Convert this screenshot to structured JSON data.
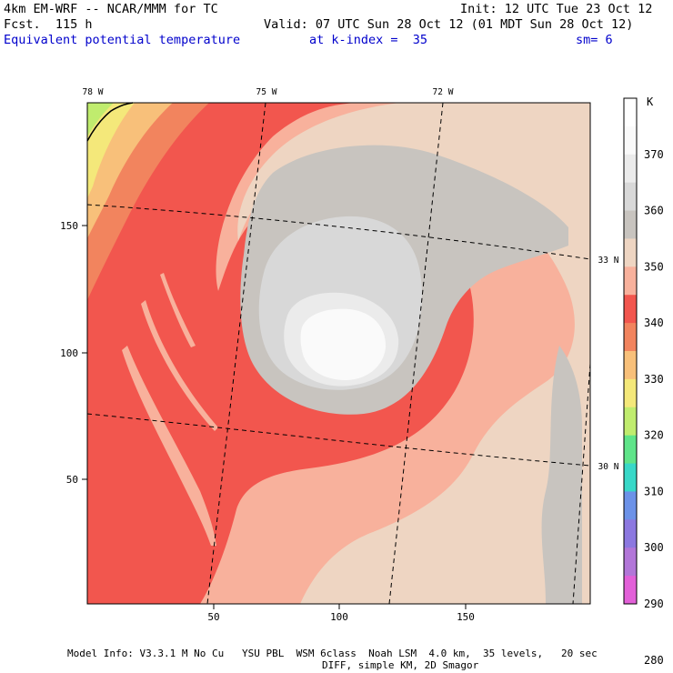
{
  "header": {
    "model": "4km EM-WRF -- NCAR/MMM for TC",
    "init": "Init: 12 UTC Tue 23 Oct 12",
    "fcst": "Fcst.  115 h",
    "valid": "Valid: 07 UTC Sun 28 Oct 12 (01 MDT Sun 28 Oct 12)",
    "field": "Equivalent potential temperature",
    "level": "at k-index =  35",
    "smooth": "sm= 6"
  },
  "map": {
    "lon_labels": [
      "78 W",
      "75 W",
      "72 W"
    ],
    "lat_labels": [
      "33 N",
      "30 N"
    ],
    "x_ticks": [
      "50",
      "100",
      "150"
    ],
    "y_ticks": [
      "150",
      "100",
      "50"
    ]
  },
  "legend": {
    "unit": "K",
    "labels": [
      "370",
      "360",
      "350",
      "340",
      "330",
      "320",
      "310",
      "300",
      "290",
      "280"
    ],
    "colors": [
      "#ffffff",
      "#fafafa",
      "#ebebeb",
      "#d8d8d8",
      "#c8c4bf",
      "#eed5c2",
      "#f8b19c",
      "#f2564e",
      "#f2845e",
      "#f8c07a",
      "#f4e87a",
      "#c0ec6e",
      "#5fe489",
      "#38d8c8",
      "#6c92e8",
      "#8c78e0",
      "#b276d8",
      "#e260d8"
    ]
  },
  "footer": {
    "line1": "Model Info: V3.3.1 M No Cu   YSU PBL  WSM 6class  Noah LSM  4.0 km,  35 levels,   20 sec",
    "line2": "DIFF, simple KM, 2D Smagor"
  }
}
